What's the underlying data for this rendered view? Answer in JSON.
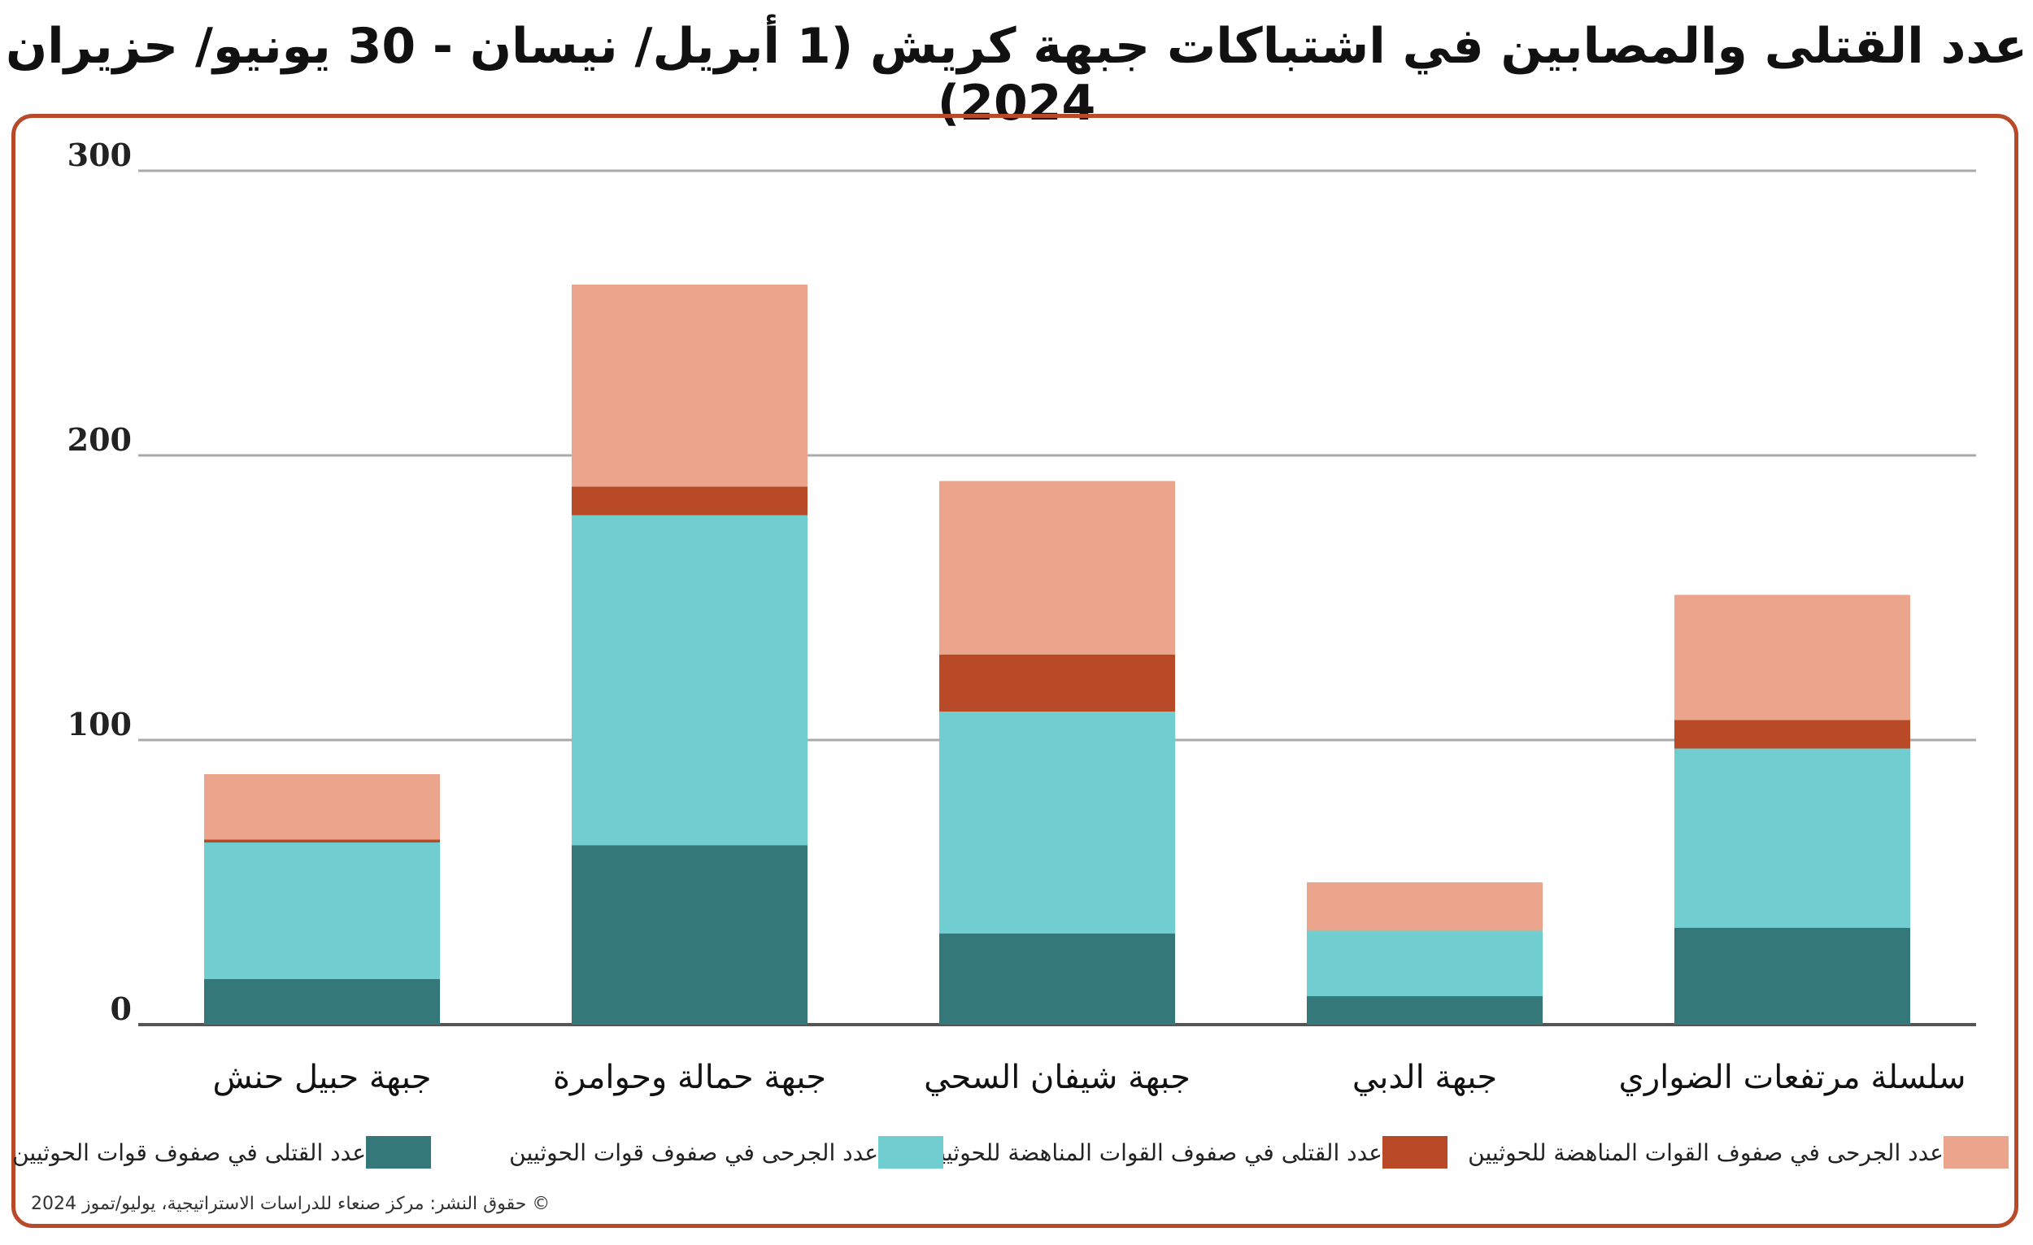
{
  "chart_data": {
    "type": "bar",
    "stacked": true,
    "title": "عدد القتلى والمصابين في اشتباكات جبهة كريش (1 أبريل/ نيسان - 30 يونيو/ حزيران 2024)",
    "categories": [
      "جبهة حبيل حنش",
      "جبهة حمالة وحوامرة",
      "جبهة شيفان السحي",
      "جبهة الدبي",
      "سلسلة مرتفعات الضواري"
    ],
    "series": [
      {
        "name": "عدد القتلى في صفوف قوات الحوثيين",
        "color": "#35787a",
        "values": [
          16,
          63,
          32,
          10,
          34
        ]
      },
      {
        "name": "عدد الجرحى في صفوف قوات الحوثيين",
        "color": "#70cdd0",
        "values": [
          48,
          116,
          78,
          23,
          63
        ]
      },
      {
        "name": "عدد القتلى في صفوف القوات المناهضة للحوثيين",
        "color": "#b84a27",
        "values": [
          1,
          10,
          20,
          0,
          10
        ]
      },
      {
        "name": "عدد الجرحى في صفوف القوات المناهضة للحوثيين",
        "color": "#eca58d",
        "values": [
          23,
          71,
          61,
          17,
          44
        ]
      }
    ],
    "yticks": [
      "0",
      "100",
      "200",
      "300"
    ],
    "ylim": [
      0,
      300
    ],
    "grid": true,
    "legend_position": "bottom"
  },
  "copyright": "© حقوق النشر: مركز صنعاء للدراسات الاستراتيجية، يوليو/تموز 2024"
}
